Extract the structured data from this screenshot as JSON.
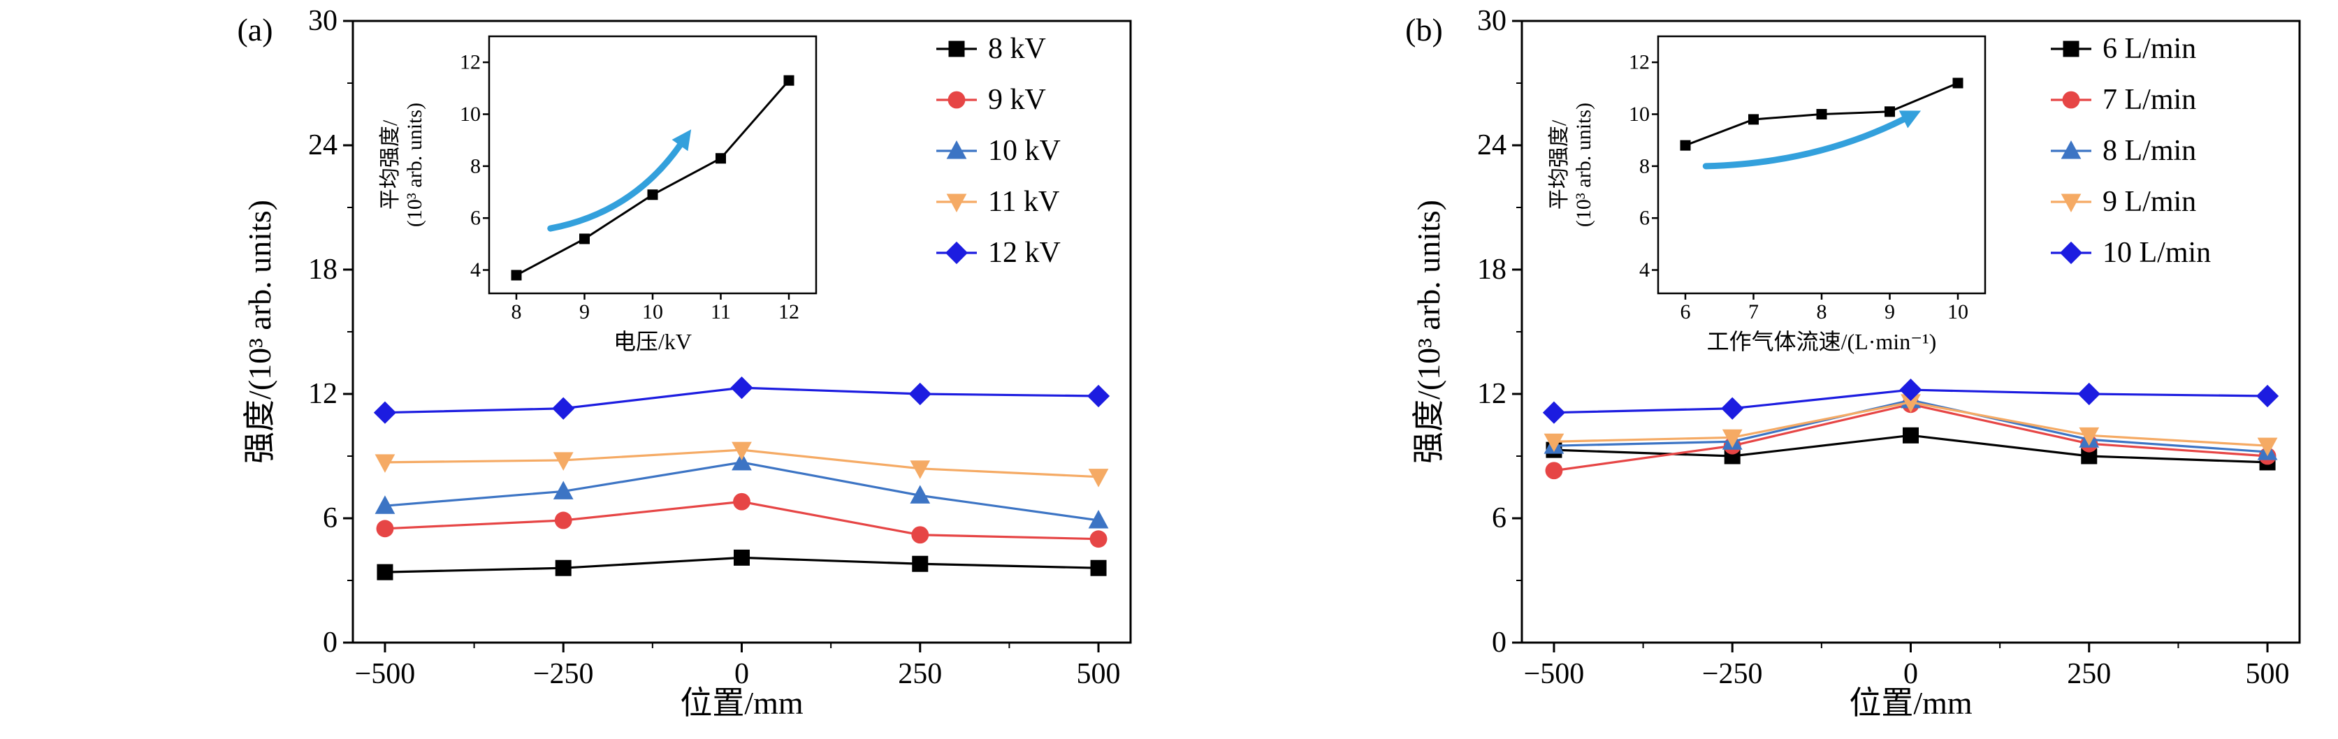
{
  "figure": {
    "description": "Two-panel scientific line chart with insets",
    "background": "#ffffff"
  },
  "chart_data": [
    {
      "type": "line",
      "panel_label": "(a)",
      "xlabel": "位置/mm",
      "ylabel": "强度/(10³ arb. units)",
      "x": [
        -500,
        -250,
        0,
        250,
        500
      ],
      "xlim": [
        -545,
        545
      ],
      "ylim": [
        0,
        30
      ],
      "xticks": [
        -500,
        -250,
        0,
        250,
        500
      ],
      "yticks": [
        0,
        6,
        12,
        18,
        24,
        30
      ],
      "grid": false,
      "legend_position": "top-right",
      "series": [
        {
          "name": "8 kV",
          "marker": "square",
          "color": "#000000",
          "values": [
            3.4,
            3.6,
            4.1,
            3.8,
            3.6
          ]
        },
        {
          "name": "9 kV",
          "marker": "circle",
          "color": "#e64545",
          "values": [
            5.5,
            5.9,
            6.8,
            5.2,
            5.0
          ]
        },
        {
          "name": "10 kV",
          "marker": "triangle-up",
          "color": "#3c74c4",
          "values": [
            6.6,
            7.3,
            8.7,
            7.1,
            5.9
          ]
        },
        {
          "name": "11 kV",
          "marker": "triangle-down",
          "color": "#f5aa64",
          "values": [
            8.7,
            8.8,
            9.3,
            8.4,
            8.0
          ]
        },
        {
          "name": "12 kV",
          "marker": "diamond",
          "color": "#1c1ce0",
          "values": [
            11.1,
            11.3,
            12.3,
            12.0,
            11.9
          ]
        }
      ],
      "inset": {
        "type": "line",
        "xlabel": "电压/kV",
        "ylabel_line1": "平均强度/",
        "ylabel_line2": "(10³ arb. units)",
        "x": [
          8,
          9,
          10,
          11,
          12
        ],
        "values": [
          3.8,
          5.2,
          6.9,
          8.3,
          11.3
        ],
        "marker": "square",
        "series_color": "#000000",
        "xticks": [
          8,
          9,
          10,
          11,
          12
        ],
        "yticks": [
          4,
          6,
          8,
          10,
          12
        ],
        "xlim": [
          7.6,
          12.4
        ],
        "ylim": [
          3.1,
          13.0
        ],
        "arrow": {
          "color": "#33a0dc",
          "from": [
            8.5,
            5.6
          ],
          "via": [
            9.7,
            6.2
          ],
          "to": [
            10.4,
            8.8
          ]
        }
      }
    },
    {
      "type": "line",
      "panel_label": "(b)",
      "xlabel": "位置/mm",
      "ylabel": "强度/(10³ arb. units)",
      "x": [
        -500,
        -250,
        0,
        250,
        500
      ],
      "xlim": [
        -545,
        545
      ],
      "ylim": [
        0,
        30
      ],
      "xticks": [
        -500,
        -250,
        0,
        250,
        500
      ],
      "yticks": [
        0,
        6,
        12,
        18,
        24,
        30
      ],
      "grid": false,
      "legend_position": "top-right",
      "series": [
        {
          "name": "6 L/min",
          "marker": "square",
          "color": "#000000",
          "values": [
            9.3,
            9.0,
            10.0,
            9.0,
            8.7
          ]
        },
        {
          "name": "7 L/min",
          "marker": "circle",
          "color": "#e64545",
          "values": [
            8.3,
            9.5,
            11.5,
            9.6,
            9.0
          ]
        },
        {
          "name": "8 L/min",
          "marker": "triangle-up",
          "color": "#3c74c4",
          "values": [
            9.5,
            9.7,
            11.7,
            9.8,
            9.2
          ]
        },
        {
          "name": "9 L/min",
          "marker": "triangle-down",
          "color": "#f5aa64",
          "values": [
            9.7,
            9.9,
            11.6,
            10.0,
            9.5
          ]
        },
        {
          "name": "10 L/min",
          "marker": "diamond",
          "color": "#1c1ce0",
          "values": [
            11.1,
            11.3,
            12.2,
            12.0,
            11.9
          ]
        }
      ],
      "inset": {
        "type": "line",
        "xlabel": "工作气体流速/(L·min⁻¹)",
        "ylabel_line1": "平均强度/",
        "ylabel_line2": "(10³ arb. units)",
        "x": [
          6,
          7,
          8,
          9,
          10
        ],
        "values": [
          8.8,
          9.8,
          10.0,
          10.1,
          11.2
        ],
        "marker": "square",
        "series_color": "#000000",
        "xticks": [
          6,
          7,
          8,
          9,
          10
        ],
        "yticks": [
          4,
          6,
          8,
          10,
          12
        ],
        "xlim": [
          5.6,
          10.4
        ],
        "ylim": [
          3.1,
          13.0
        ],
        "arrow": {
          "color": "#33a0dc",
          "from": [
            6.3,
            8.0
          ],
          "via": [
            7.9,
            8.1
          ],
          "to": [
            9.2,
            9.8
          ]
        }
      }
    }
  ]
}
